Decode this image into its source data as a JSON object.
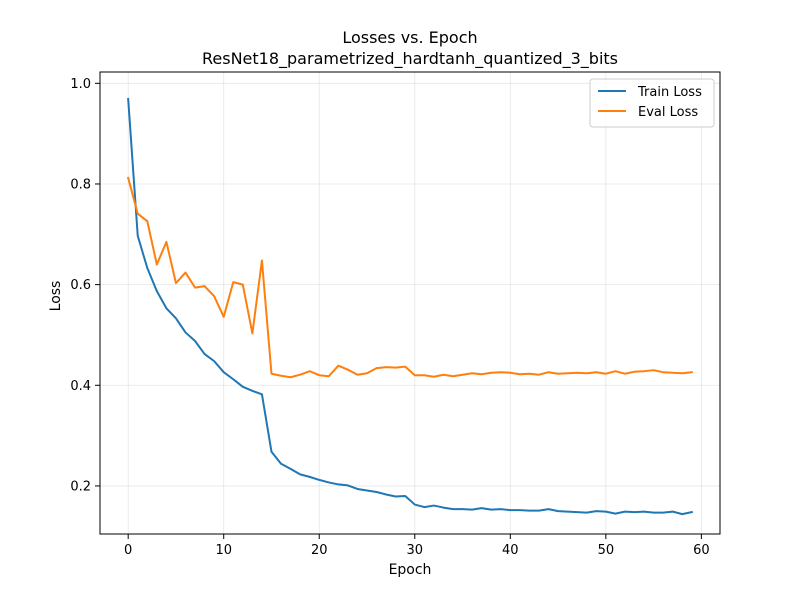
{
  "chart_data": {
    "type": "line",
    "title": "Losses vs. Epoch",
    "subtitle": "ResNet18_parametrized_hardtanh_quantized_3_bits",
    "xlabel": "Epoch",
    "ylabel": "Loss",
    "xlim": [
      -2.95,
      61.95
    ],
    "ylim": [
      0.1045,
      1.0225
    ],
    "xticks": [
      0,
      10,
      20,
      30,
      40,
      50,
      60
    ],
    "yticks": [
      0.2,
      0.4,
      0.6,
      0.8,
      1.0
    ],
    "xtick_labels": [
      "0",
      "10",
      "20",
      "30",
      "40",
      "50",
      "60"
    ],
    "ytick_labels": [
      "0.2",
      "0.4",
      "0.6",
      "0.8",
      "1.0"
    ],
    "grid": true,
    "legend_position": "top-right",
    "x": [
      0,
      1,
      2,
      3,
      4,
      5,
      6,
      7,
      8,
      9,
      10,
      11,
      12,
      13,
      14,
      15,
      16,
      17,
      18,
      19,
      20,
      21,
      22,
      23,
      24,
      25,
      26,
      27,
      28,
      29,
      30,
      31,
      32,
      33,
      34,
      35,
      36,
      37,
      38,
      39,
      40,
      41,
      42,
      43,
      44,
      45,
      46,
      47,
      48,
      49,
      50,
      51,
      52,
      53,
      54,
      55,
      56,
      57,
      58,
      59
    ],
    "series": [
      {
        "name": "Train Loss",
        "color": "#1f77b4",
        "values": [
          0.969,
          0.697,
          0.633,
          0.587,
          0.553,
          0.533,
          0.505,
          0.488,
          0.462,
          0.448,
          0.426,
          0.412,
          0.397,
          0.389,
          0.382,
          0.268,
          0.244,
          0.234,
          0.223,
          0.218,
          0.212,
          0.207,
          0.203,
          0.201,
          0.194,
          0.191,
          0.188,
          0.183,
          0.179,
          0.18,
          0.163,
          0.158,
          0.161,
          0.157,
          0.154,
          0.154,
          0.153,
          0.156,
          0.153,
          0.154,
          0.152,
          0.152,
          0.151,
          0.151,
          0.154,
          0.15,
          0.149,
          0.148,
          0.147,
          0.15,
          0.149,
          0.145,
          0.149,
          0.148,
          0.149,
          0.147,
          0.147,
          0.149,
          0.144,
          0.148
        ]
      },
      {
        "name": "Eval Loss",
        "color": "#ff7f0e",
        "values": [
          0.812,
          0.741,
          0.726,
          0.64,
          0.685,
          0.603,
          0.624,
          0.594,
          0.597,
          0.577,
          0.536,
          0.605,
          0.6,
          0.503,
          0.648,
          0.423,
          0.419,
          0.416,
          0.421,
          0.428,
          0.42,
          0.418,
          0.439,
          0.431,
          0.421,
          0.424,
          0.434,
          0.436,
          0.435,
          0.437,
          0.42,
          0.42,
          0.417,
          0.421,
          0.418,
          0.421,
          0.424,
          0.422,
          0.425,
          0.426,
          0.425,
          0.422,
          0.423,
          0.421,
          0.426,
          0.423,
          0.424,
          0.425,
          0.424,
          0.426,
          0.423,
          0.428,
          0.423,
          0.427,
          0.428,
          0.43,
          0.426,
          0.425,
          0.424,
          0.426
        ]
      }
    ]
  }
}
